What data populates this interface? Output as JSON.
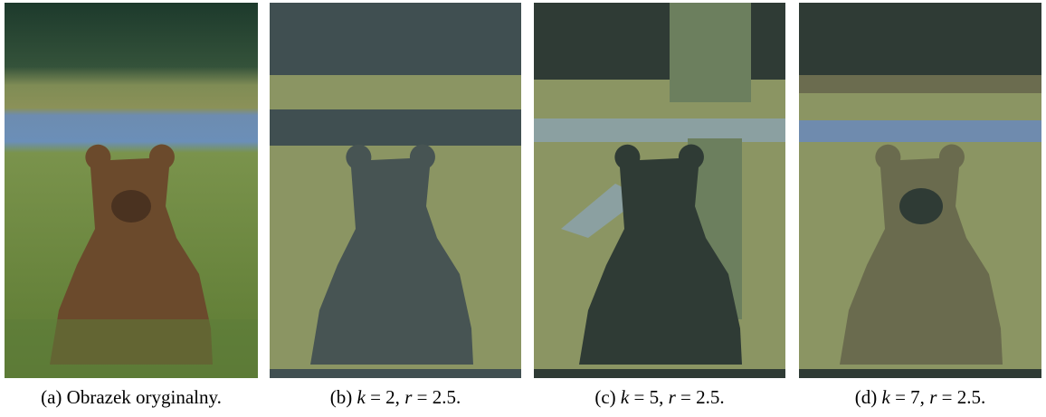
{
  "figures": [
    {
      "label": "(a)",
      "caption": "Obrazek oryginalny."
    },
    {
      "label": "(b)",
      "parts": [
        "k",
        " = 2, ",
        "r",
        " = 2.5."
      ]
    },
    {
      "label": "(c)",
      "parts": [
        "k",
        " = 5, ",
        "r",
        " = 2.5."
      ]
    },
    {
      "label": "(d)",
      "parts": [
        "k",
        " = 7, ",
        "r",
        " = 2.5."
      ]
    }
  ]
}
